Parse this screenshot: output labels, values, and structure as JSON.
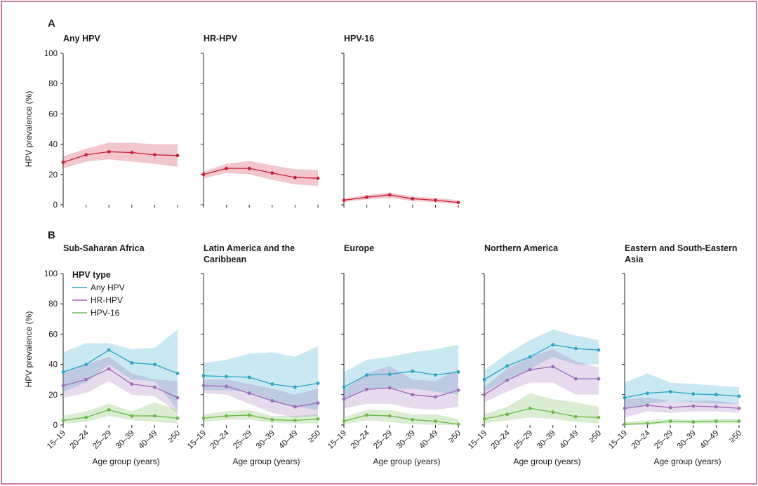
{
  "figure": {
    "panel_a_letter": "A",
    "panel_b_letter": "B"
  },
  "colors": {
    "frame": "#b5477a",
    "any_hpv": "#2aa3c7",
    "hr_hpv": "#9b6cb7",
    "hpv16": "#6cb84a",
    "overall": "#c81e34"
  },
  "chart_data": [
    {
      "type": "line",
      "panel": "A",
      "title": "Any HPV",
      "categories": [
        "15–19",
        "20–24",
        "25–29",
        "30–39",
        "40–49",
        "≥50"
      ],
      "ylabel": "HPV prevalence (%)",
      "yticks": [
        "0",
        "20",
        "40",
        "60",
        "80",
        "100"
      ],
      "ylim": [
        0,
        100
      ],
      "series": [
        {
          "key": "overall",
          "color": "#c81e34",
          "values": [
            28,
            33,
            35,
            34.5,
            33,
            32.5
          ],
          "lower": [
            24,
            28.5,
            30,
            28.5,
            27,
            25
          ],
          "upper": [
            32,
            37,
            41,
            41,
            40,
            40
          ]
        }
      ]
    },
    {
      "type": "line",
      "panel": "A",
      "title": "HR-HPV",
      "categories": [
        "15–19",
        "20–24",
        "25–29",
        "30–39",
        "40–49",
        "≥50"
      ],
      "ylim": [
        0,
        100
      ],
      "series": [
        {
          "key": "overall",
          "color": "#c81e34",
          "values": [
            20,
            24,
            24,
            21,
            18,
            17.5
          ],
          "lower": [
            17.5,
            21,
            20,
            16.5,
            13.5,
            12.5
          ],
          "upper": [
            22,
            27,
            29,
            26,
            23.5,
            23
          ]
        }
      ]
    },
    {
      "type": "line",
      "panel": "A",
      "title": "HPV-16",
      "categories": [
        "15–19",
        "20–24",
        "25–29",
        "30–39",
        "40–49",
        "≥50"
      ],
      "ylim": [
        0,
        100
      ],
      "series": [
        {
          "key": "overall",
          "color": "#c81e34",
          "values": [
            3,
            5,
            6.5,
            4,
            3,
            1.5
          ],
          "lower": [
            2,
            3.5,
            4.5,
            2.5,
            1.5,
            0.5
          ],
          "upper": [
            4,
            6.5,
            8,
            5.5,
            4.5,
            3
          ]
        }
      ]
    },
    {
      "type": "line",
      "panel": "B",
      "title": "Sub-Saharan Africa",
      "categories": [
        "15–19",
        "20–24",
        "25–29",
        "30–39",
        "40–49",
        "≥50"
      ],
      "ylabel": "HPV prevalence (%)",
      "xlabel": "Age group (years)",
      "yticks": [
        "0",
        "20",
        "40",
        "60",
        "80",
        "100"
      ],
      "ylim": [
        0,
        100
      ],
      "series": [
        {
          "key": "any_hpv",
          "color": "#2aa3c7",
          "values": [
            35,
            40,
            49.5,
            41,
            40,
            34
          ],
          "lower": [
            22,
            28,
            40,
            30,
            29,
            10
          ],
          "upper": [
            48,
            54,
            54,
            50,
            51,
            63
          ]
        },
        {
          "key": "hr_hpv",
          "color": "#9b6cb7",
          "values": [
            26,
            30,
            37,
            27,
            25,
            18
          ],
          "lower": [
            18,
            21,
            29,
            20,
            19,
            8
          ],
          "upper": [
            34,
            40,
            45,
            34,
            30,
            29
          ]
        },
        {
          "key": "hpv16",
          "color": "#6cb84a",
          "values": [
            3,
            5,
            10,
            6,
            6,
            4.5
          ],
          "lower": [
            1,
            2,
            6,
            3,
            2,
            1
          ],
          "upper": [
            6,
            9,
            14,
            9,
            15,
            10
          ]
        }
      ]
    },
    {
      "type": "line",
      "panel": "B",
      "title_lines": [
        "Latin America and the",
        "Caribbean"
      ],
      "categories": [
        "15–19",
        "20–24",
        "25–29",
        "30–39",
        "40–49",
        "≥50"
      ],
      "xlabel": "Age group (years)",
      "ylim": [
        0,
        100
      ],
      "series": [
        {
          "key": "any_hpv",
          "color": "#2aa3c7",
          "values": [
            32.5,
            32,
            31.5,
            27,
            25,
            27.5
          ],
          "lower": [
            23,
            23,
            22,
            16,
            12,
            10
          ],
          "upper": [
            41,
            43,
            47,
            48,
            45,
            52
          ]
        },
        {
          "key": "hr_hpv",
          "color": "#9b6cb7",
          "values": [
            26,
            25.5,
            21,
            16,
            12,
            14.5
          ],
          "lower": [
            21,
            20,
            14,
            8,
            5,
            6
          ],
          "upper": [
            30,
            30,
            27,
            24,
            20,
            24
          ]
        },
        {
          "key": "hpv16",
          "color": "#6cb84a",
          "values": [
            4.5,
            6,
            6.5,
            3.5,
            3,
            4
          ],
          "lower": [
            2,
            3.5,
            3.5,
            1.5,
            1,
            1
          ],
          "upper": [
            7,
            9,
            10,
            6,
            6,
            7
          ]
        }
      ]
    },
    {
      "type": "line",
      "panel": "B",
      "title": "Europe",
      "categories": [
        "15–19",
        "20–24",
        "25–29",
        "30–39",
        "40–49",
        "≥50"
      ],
      "xlabel": "Age group (years)",
      "ylim": [
        0,
        100
      ],
      "series": [
        {
          "key": "any_hpv",
          "color": "#2aa3c7",
          "values": [
            25,
            33,
            33.5,
            35.5,
            33,
            35
          ],
          "lower": [
            17,
            24,
            24,
            24,
            22,
            20
          ],
          "upper": [
            35,
            43,
            45,
            48,
            50,
            53
          ]
        },
        {
          "key": "hr_hpv",
          "color": "#9b6cb7",
          "values": [
            17,
            23.5,
            24.5,
            20,
            18.5,
            23
          ],
          "lower": [
            11,
            14,
            14,
            11,
            10,
            12
          ],
          "upper": [
            23,
            34,
            39,
            30,
            29,
            37
          ]
        },
        {
          "key": "hpv16",
          "color": "#6cb84a",
          "values": [
            2.5,
            6.5,
            6,
            3.5,
            2.5,
            0.5
          ],
          "lower": [
            0.5,
            3,
            2,
            0.5,
            0,
            0
          ],
          "upper": [
            5,
            10,
            10,
            7,
            7,
            4
          ]
        }
      ]
    },
    {
      "type": "line",
      "panel": "B",
      "title": "Northern America",
      "categories": [
        "15–19",
        "20–24",
        "25–29",
        "30–39",
        "40–49",
        "≥50"
      ],
      "xlabel": "Age group (years)",
      "ylim": [
        0,
        100
      ],
      "series": [
        {
          "key": "any_hpv",
          "color": "#2aa3c7",
          "values": [
            30,
            39,
            45,
            53,
            50.5,
            49.5
          ],
          "lower": [
            22,
            30,
            37,
            45,
            40,
            40
          ],
          "upper": [
            36,
            47,
            56,
            63,
            59,
            56
          ]
        },
        {
          "key": "hr_hpv",
          "color": "#9b6cb7",
          "values": [
            20,
            29.5,
            36.5,
            38.5,
            30.5,
            30.5
          ],
          "lower": [
            15,
            22,
            28,
            28,
            20,
            20
          ],
          "upper": [
            25,
            37,
            45,
            50,
            42,
            38
          ]
        },
        {
          "key": "hpv16",
          "color": "#6cb84a",
          "values": [
            4,
            7,
            11,
            8.5,
            5.5,
            5
          ],
          "lower": [
            1,
            3,
            5,
            4,
            2,
            1
          ],
          "upper": [
            7,
            12,
            21,
            17,
            15,
            12
          ]
        }
      ]
    },
    {
      "type": "line",
      "panel": "B",
      "title_lines": [
        "Eastern and South-Eastern",
        "Asia"
      ],
      "categories": [
        "15–19",
        "20–24",
        "25–29",
        "30–39",
        "40–49",
        "≥50"
      ],
      "xlabel": "Age group (years)",
      "ylim": [
        0,
        100
      ],
      "series": [
        {
          "key": "any_hpv",
          "color": "#2aa3c7",
          "values": [
            18,
            21,
            22,
            20.5,
            20,
            19
          ],
          "lower": [
            10,
            14,
            16,
            15,
            14,
            14
          ],
          "upper": [
            28,
            34,
            28,
            27,
            26,
            25
          ]
        },
        {
          "key": "hr_hpv",
          "color": "#9b6cb7",
          "values": [
            11,
            13,
            11.5,
            12.5,
            12,
            11
          ],
          "lower": [
            5,
            9,
            8,
            9,
            9,
            8
          ],
          "upper": [
            17,
            18,
            16,
            16,
            16,
            14
          ]
        },
        {
          "key": "hpv16",
          "color": "#6cb84a",
          "values": [
            0.5,
            1,
            2.5,
            2,
            2.5,
            2.5
          ],
          "lower": [
            0,
            0,
            1,
            1,
            1,
            1
          ],
          "upper": [
            2,
            3,
            4,
            3.5,
            4,
            4
          ]
        }
      ]
    }
  ],
  "legend": {
    "title": "HPV type",
    "items": [
      {
        "key": "any_hpv",
        "label": "Any HPV",
        "color": "#2aa3c7"
      },
      {
        "key": "hr_hpv",
        "label": "HR-HPV",
        "color": "#9b6cb7"
      },
      {
        "key": "hpv16",
        "label": "HPV-16",
        "color": "#6cb84a"
      }
    ]
  }
}
